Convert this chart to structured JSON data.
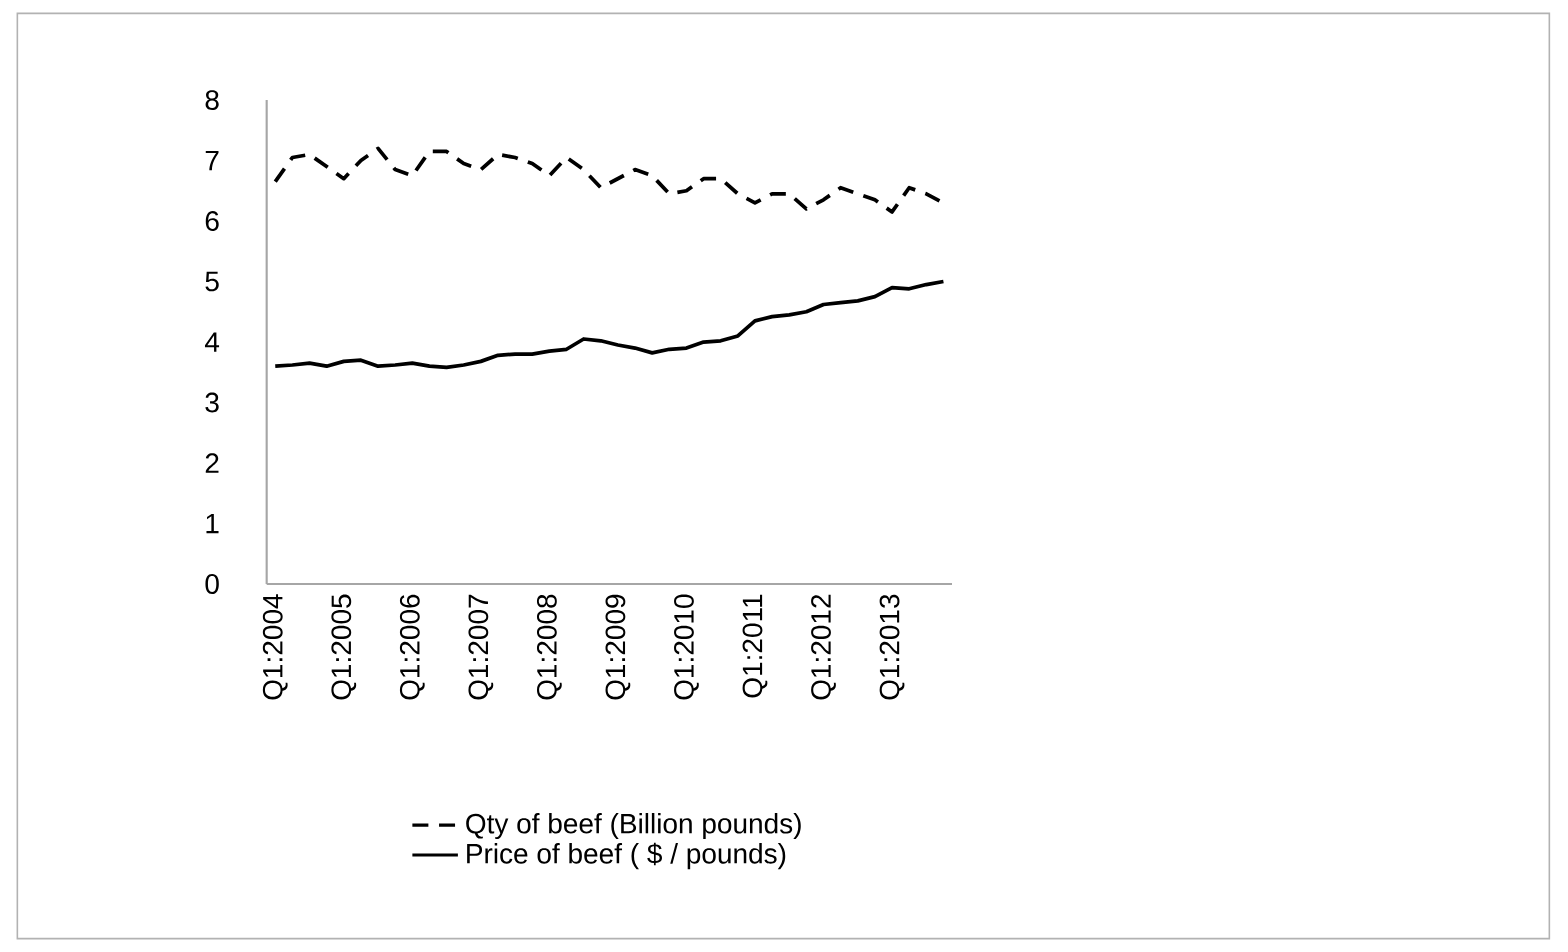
{
  "chart_data": {
    "type": "line",
    "categories": [
      "Q1:2004",
      null,
      null,
      null,
      "Q1:2005",
      null,
      null,
      null,
      "Q1:2006",
      null,
      null,
      null,
      "Q1:2007",
      null,
      null,
      null,
      "Q1:2008",
      null,
      null,
      null,
      "Q1:2009",
      null,
      null,
      null,
      "Q1:2010",
      null,
      null,
      null,
      "Q1:2011",
      null,
      null,
      null,
      "Q1:2012",
      null,
      null,
      null,
      "Q1:2013",
      null,
      null,
      null
    ],
    "series": [
      {
        "name": "Qty of beef (Billion pounds)",
        "color": "#000000",
        "line_style": "dashed",
        "values": [
          6.65,
          7.05,
          7.1,
          6.9,
          6.7,
          7.0,
          7.2,
          6.85,
          6.75,
          7.15,
          7.15,
          6.95,
          6.85,
          7.1,
          7.05,
          6.95,
          6.75,
          7.05,
          6.85,
          6.55,
          6.7,
          6.85,
          6.75,
          6.45,
          6.5,
          6.7,
          6.7,
          6.45,
          6.3,
          6.45,
          6.45,
          6.2,
          6.35,
          6.55,
          6.45,
          6.35,
          6.15,
          6.55,
          6.45,
          6.3
        ]
      },
      {
        "name": "Price of beef ( $ / pounds)",
        "color": "#000000",
        "line_style": "solid",
        "values": [
          3.6,
          3.62,
          3.65,
          3.6,
          3.68,
          3.7,
          3.6,
          3.62,
          3.65,
          3.6,
          3.58,
          3.62,
          3.68,
          3.78,
          3.8,
          3.8,
          3.85,
          3.88,
          4.05,
          4.02,
          3.95,
          3.9,
          3.82,
          3.88,
          3.9,
          4.0,
          4.02,
          4.1,
          4.35,
          4.42,
          4.45,
          4.5,
          4.62,
          4.65,
          4.68,
          4.75,
          4.9,
          4.88,
          4.95,
          5.0
        ]
      }
    ],
    "ylim": [
      0,
      8
    ],
    "yticks": [
      0,
      1,
      2,
      3,
      4,
      5,
      6,
      7,
      8
    ],
    "grid": false,
    "legend": "bottom",
    "marker": "none"
  }
}
